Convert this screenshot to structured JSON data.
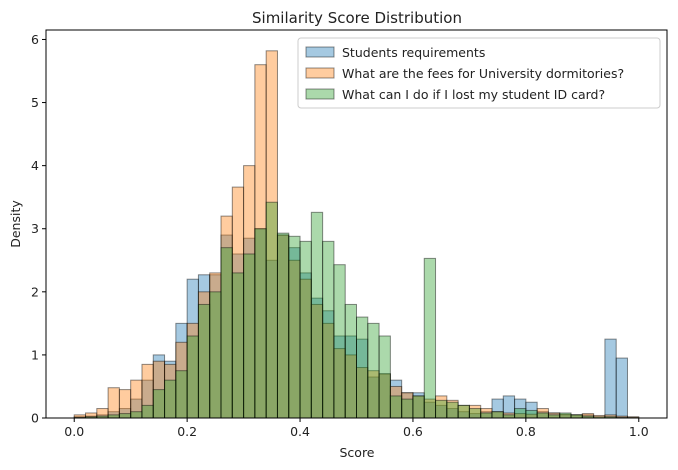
{
  "chart_data": {
    "type": "histogram",
    "title": "Similarity Score Distribution",
    "xlabel": "Score",
    "ylabel": "Density",
    "xlim": [
      -0.05,
      1.05
    ],
    "ylim": [
      0,
      6.15
    ],
    "xticks": [
      "0.0",
      "0.2",
      "0.4",
      "0.6",
      "0.8",
      "1.0"
    ],
    "xtick_values": [
      0.0,
      0.2,
      0.4,
      0.6,
      0.8,
      1.0
    ],
    "yticks": [
      "0",
      "1",
      "2",
      "3",
      "4",
      "5",
      "6"
    ],
    "ytick_values": [
      0,
      1,
      2,
      3,
      4,
      5,
      6
    ],
    "bins": {
      "start": 0.0,
      "width": 0.02,
      "count": 50
    },
    "legend_position": "top-right",
    "series": [
      {
        "name": "Students requirements",
        "color": "#1f77b4",
        "values": [
          0.02,
          0.03,
          0.05,
          0.1,
          0.15,
          0.3,
          0.6,
          1.0,
          0.9,
          1.5,
          2.2,
          2.27,
          2.27,
          2.9,
          2.6,
          2.85,
          3.0,
          2.5,
          2.9,
          2.7,
          2.3,
          1.9,
          1.7,
          1.3,
          1.3,
          1.25,
          0.65,
          0.7,
          0.6,
          0.4,
          0.4,
          0.25,
          0.2,
          0.15,
          0.1,
          0.07,
          0.1,
          0.3,
          0.35,
          0.3,
          0.25,
          0.1,
          0.08,
          0.05,
          0.05,
          0.05,
          0.0,
          1.25,
          0.95,
          0.0
        ]
      },
      {
        "name": "What are the fees for University dormitories?",
        "color": "#ff7f0e",
        "values": [
          0.05,
          0.08,
          0.15,
          0.48,
          0.45,
          0.6,
          0.85,
          0.9,
          0.85,
          1.2,
          1.5,
          2.0,
          2.3,
          3.2,
          3.66,
          4.0,
          5.6,
          5.82,
          2.9,
          2.5,
          2.2,
          1.8,
          1.5,
          1.1,
          1.0,
          0.8,
          0.75,
          0.7,
          0.5,
          0.4,
          0.35,
          0.3,
          0.35,
          0.28,
          0.2,
          0.2,
          0.15,
          0.1,
          0.08,
          0.07,
          0.06,
          0.15,
          0.08,
          0.06,
          0.05,
          0.07,
          0.04,
          0.05,
          0.03,
          0.02
        ]
      },
      {
        "name": "What can I do if I lost my student ID card?",
        "color": "#2ca02c",
        "values": [
          0.01,
          0.02,
          0.03,
          0.05,
          0.07,
          0.1,
          0.2,
          0.45,
          0.6,
          0.75,
          1.3,
          1.8,
          2.0,
          2.7,
          2.3,
          2.6,
          3.0,
          3.42,
          2.93,
          2.88,
          2.8,
          3.26,
          2.8,
          2.43,
          1.8,
          1.6,
          1.5,
          1.3,
          0.35,
          0.3,
          0.35,
          2.53,
          0.28,
          0.25,
          0.2,
          0.15,
          0.08,
          0.1,
          0.05,
          0.15,
          0.12,
          0.08,
          0.05,
          0.08,
          0.05,
          0.03,
          0.02,
          0.02,
          0.01,
          0.01
        ]
      }
    ]
  }
}
